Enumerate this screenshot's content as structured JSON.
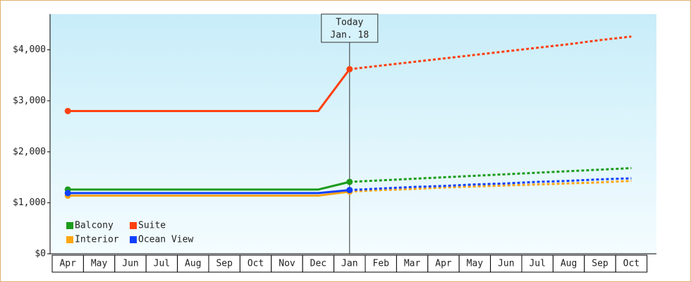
{
  "chart_data": {
    "type": "line",
    "categories": [
      "Apr",
      "May",
      "Jun",
      "Jul",
      "Aug",
      "Sep",
      "Oct",
      "Nov",
      "Dec",
      "Jan",
      "Feb",
      "Mar",
      "Apr",
      "May",
      "Jun",
      "Jul",
      "Aug",
      "Sep",
      "Oct"
    ],
    "series": [
      {
        "name": "Balcony",
        "color": "#1c9c1c",
        "values": [
          1260,
          1260,
          1260,
          1260,
          1260,
          1260,
          1260,
          1260,
          1260,
          1410,
          1440,
          1470,
          1500,
          1530,
          1560,
          1590,
          1620,
          1650,
          1680
        ]
      },
      {
        "name": "Suite",
        "color": "#ff4010",
        "values": [
          2800,
          2800,
          2800,
          2800,
          2800,
          2800,
          2800,
          2800,
          2800,
          3620,
          3690,
          3760,
          3830,
          3900,
          3970,
          4040,
          4110,
          4190,
          4260
        ]
      },
      {
        "name": "Interior",
        "color": "#ffa510",
        "values": [
          1140,
          1140,
          1140,
          1140,
          1140,
          1140,
          1140,
          1140,
          1140,
          1220,
          1250,
          1270,
          1300,
          1320,
          1340,
          1360,
          1380,
          1400,
          1430
        ]
      },
      {
        "name": "Ocean View",
        "color": "#1040ff",
        "values": [
          1190,
          1190,
          1190,
          1190,
          1190,
          1190,
          1190,
          1190,
          1190,
          1250,
          1280,
          1310,
          1330,
          1360,
          1380,
          1410,
          1430,
          1460,
          1480
        ]
      }
    ],
    "ylim": [
      0,
      4700
    ],
    "yticks": [
      {
        "value": 0,
        "label": "$0"
      },
      {
        "value": 1000,
        "label": "$1,000"
      },
      {
        "value": 2000,
        "label": "$2,000"
      },
      {
        "value": 3000,
        "label": "$3,000"
      },
      {
        "value": 4000,
        "label": "$4,000"
      }
    ],
    "annotation": {
      "lines": [
        "Today",
        "Jan. 18"
      ],
      "category": "Jan"
    },
    "legend": "bottom-left"
  }
}
